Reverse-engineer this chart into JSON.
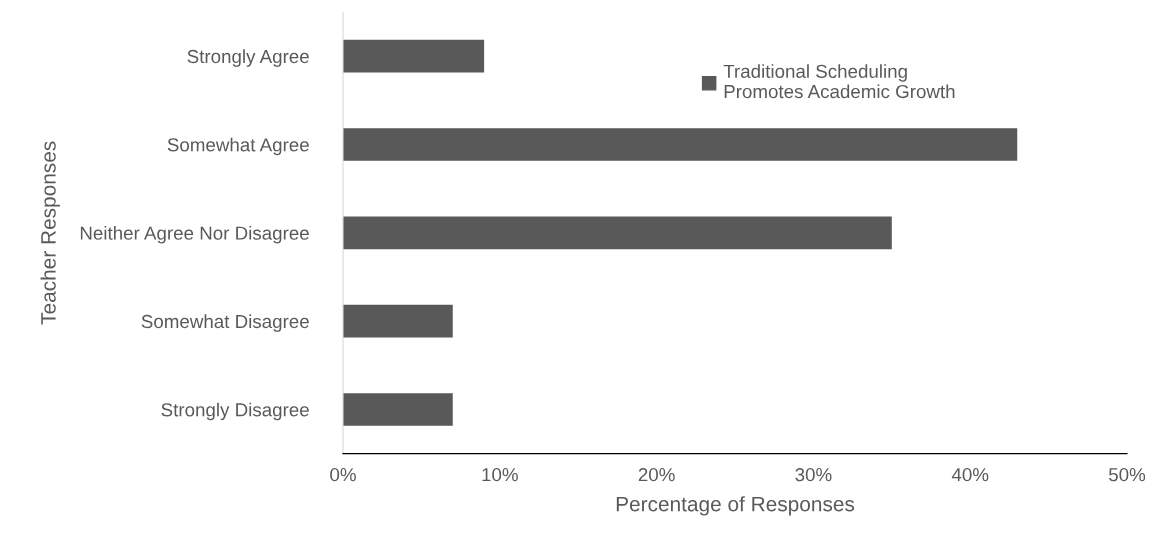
{
  "chart_data": {
    "type": "bar",
    "orientation": "horizontal",
    "categories": [
      "Strongly Agree",
      "Somewhat Agree",
      "Neither Agree Nor Disagree",
      "Somewhat Disagree",
      "Strongly Disagree"
    ],
    "series": [
      {
        "name": "Traditional Scheduling\nPromotes Academic Growth",
        "color": "#595959",
        "values": [
          9,
          43,
          35,
          7,
          7
        ]
      }
    ],
    "xlim": [
      0,
      50
    ],
    "xticks": [
      {
        "value": 0,
        "label": "0%"
      },
      {
        "value": 10,
        "label": "10%"
      },
      {
        "value": 20,
        "label": "20%"
      },
      {
        "value": 30,
        "label": "30%"
      },
      {
        "value": 40,
        "label": "40%"
      },
      {
        "value": 50,
        "label": "50%"
      }
    ],
    "xlabel": "Percentage of Responses",
    "ylabel": "Teacher Responses",
    "grid": false,
    "legend": "top"
  }
}
